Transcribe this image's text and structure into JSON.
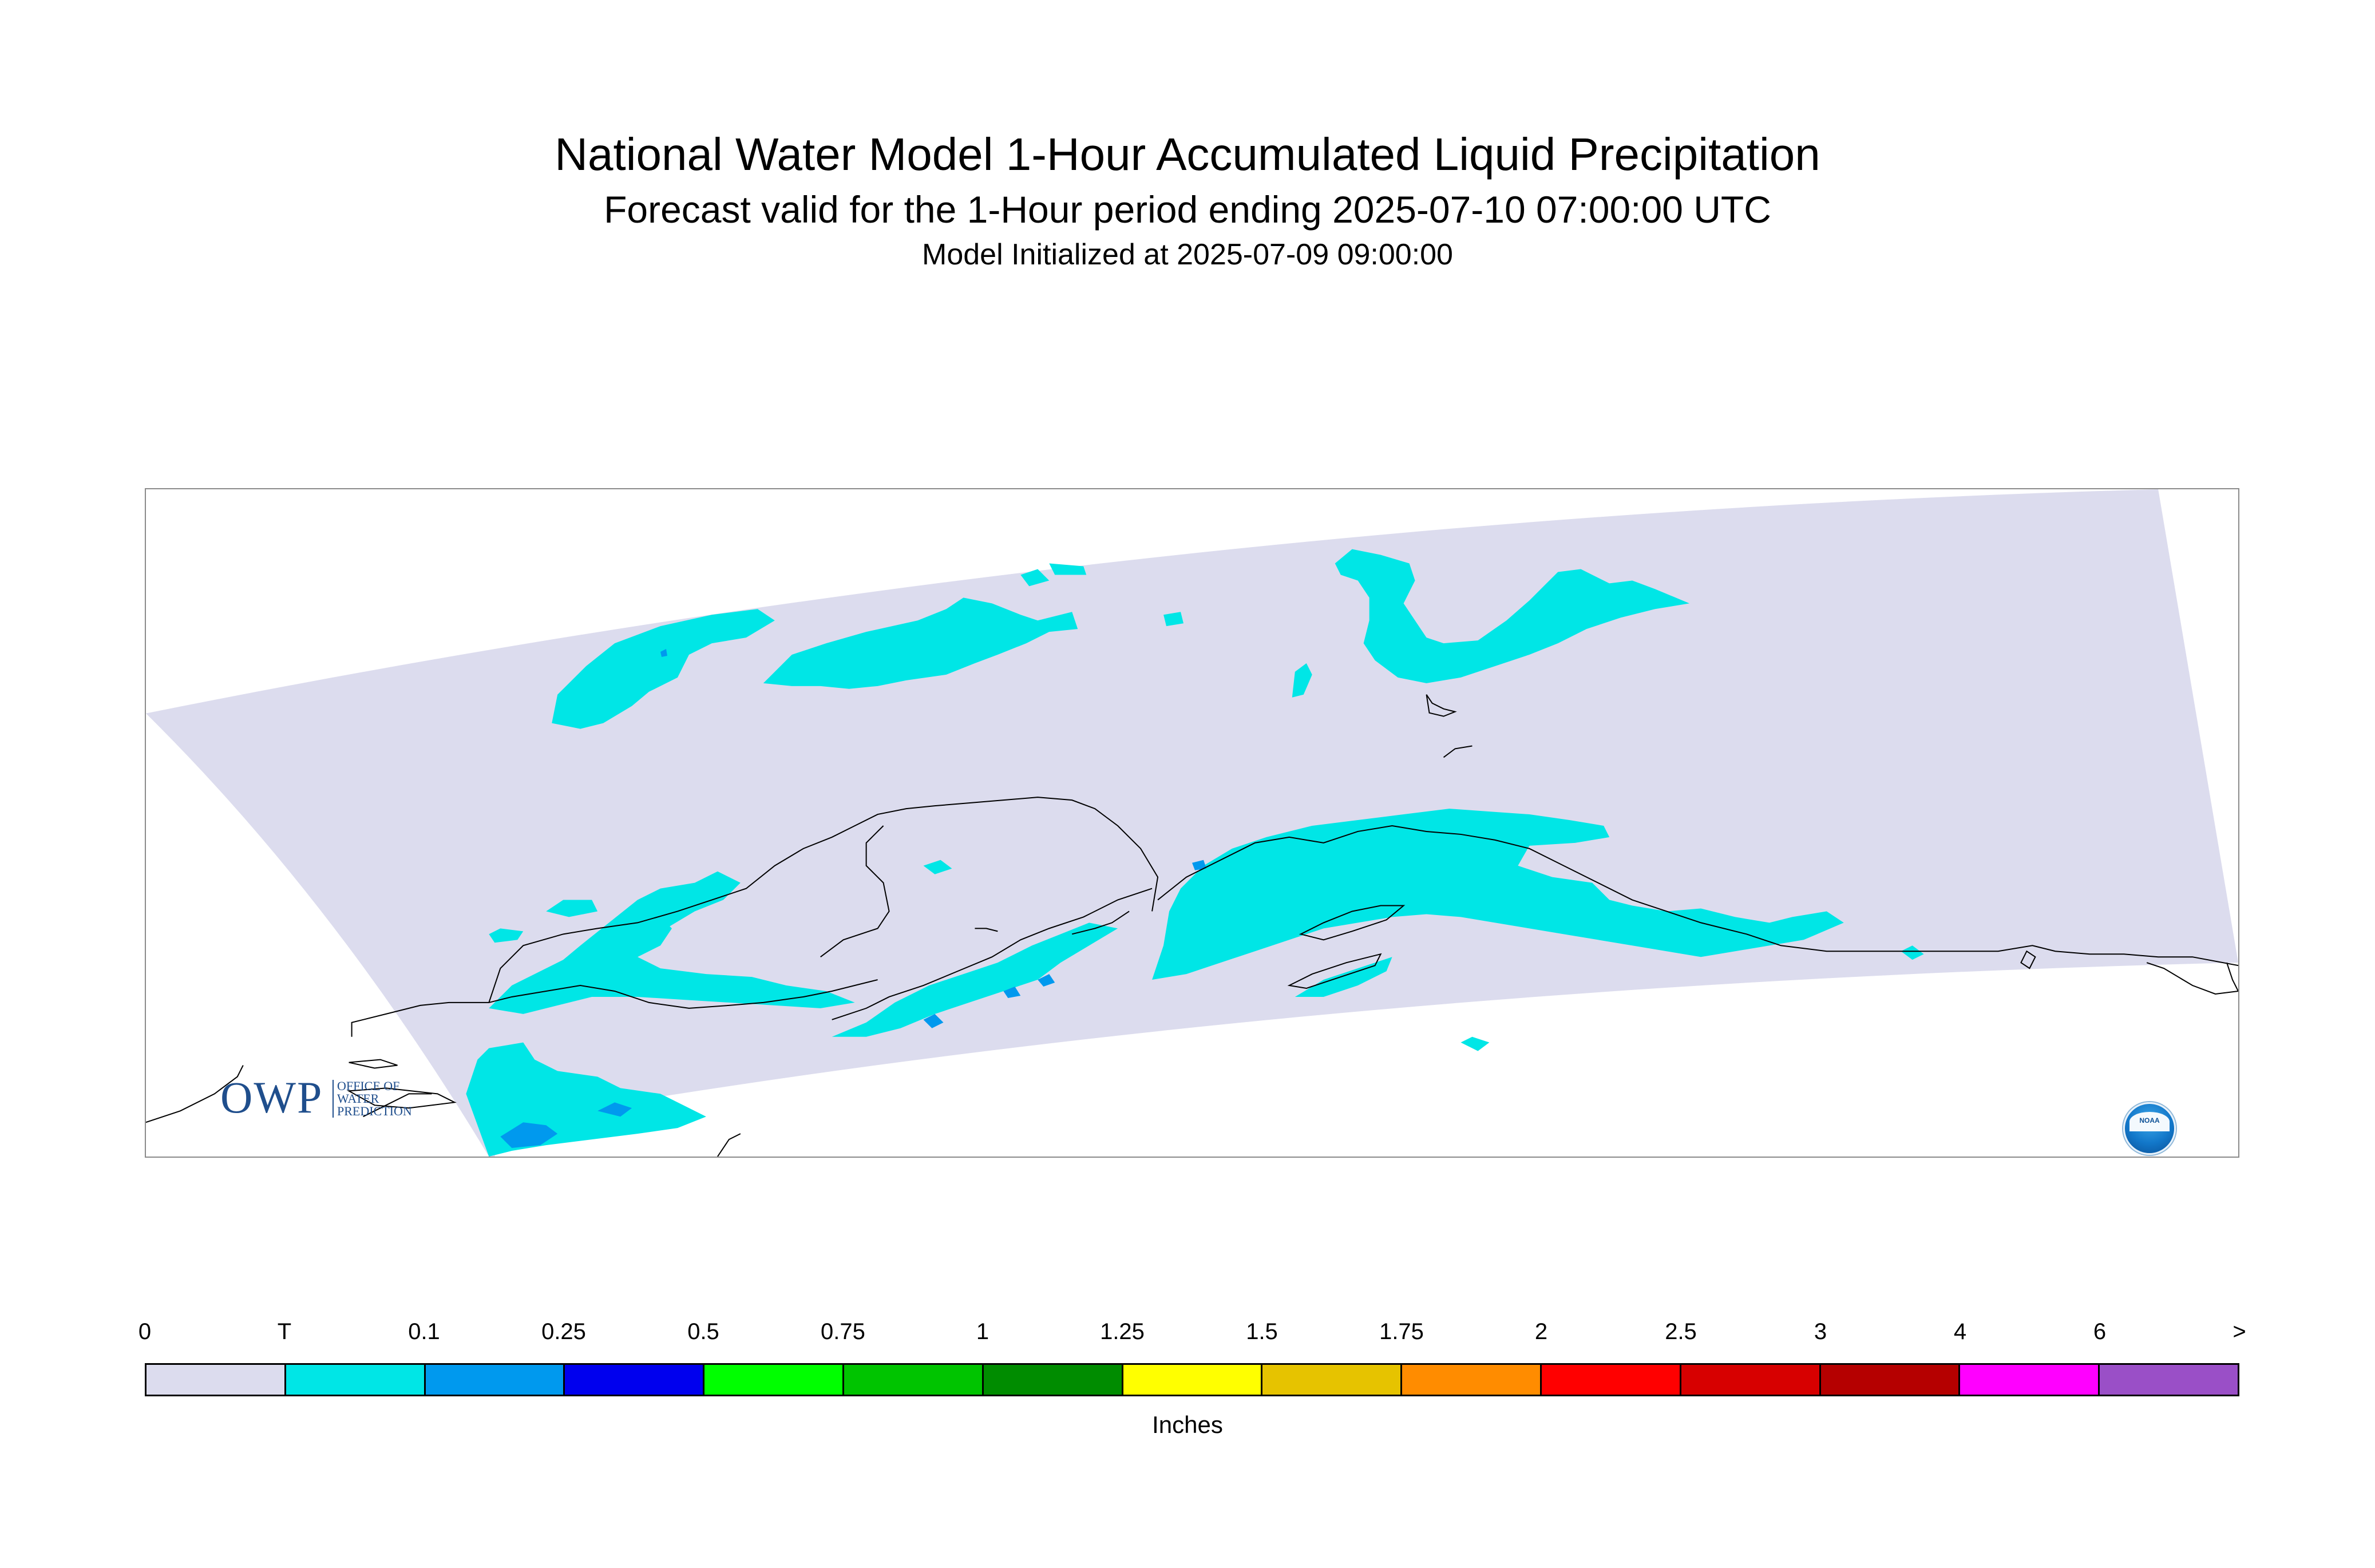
{
  "header": {
    "title": "National Water Model 1-Hour Accumulated Liquid Precipitation",
    "subtitle": "Forecast valid for the 1-Hour period ending 2025-07-10 07:00:00 UTC",
    "init": "Model Initialized at 2025-07-09 09:00:00"
  },
  "map": {
    "region_fill": "#dcdcee",
    "precip_trace_color": "#00e6e6",
    "precip_light_color": "#0099ee",
    "coastline_color": "#000000"
  },
  "logos": {
    "owp_letters": "OWP",
    "owp_subtext": "OFFICE OF\nWATER\nPREDICTION",
    "noaa_text": "NOAA"
  },
  "legend": {
    "unit": "Inches",
    "tick_labels": [
      "0",
      "T",
      "0.1",
      "0.25",
      "0.5",
      "0.75",
      "1",
      "1.25",
      "1.5",
      "1.75",
      "2",
      "2.5",
      "3",
      "4",
      "6",
      ">"
    ],
    "colors": [
      "#dcdcee",
      "#00e6e6",
      "#0099ee",
      "#0000ee",
      "#00ff00",
      "#00c400",
      "#008c00",
      "#ffff00",
      "#e6c300",
      "#ff8c00",
      "#ff0000",
      "#d70000",
      "#b50000",
      "#ff00ff",
      "#9a4fc7"
    ]
  }
}
